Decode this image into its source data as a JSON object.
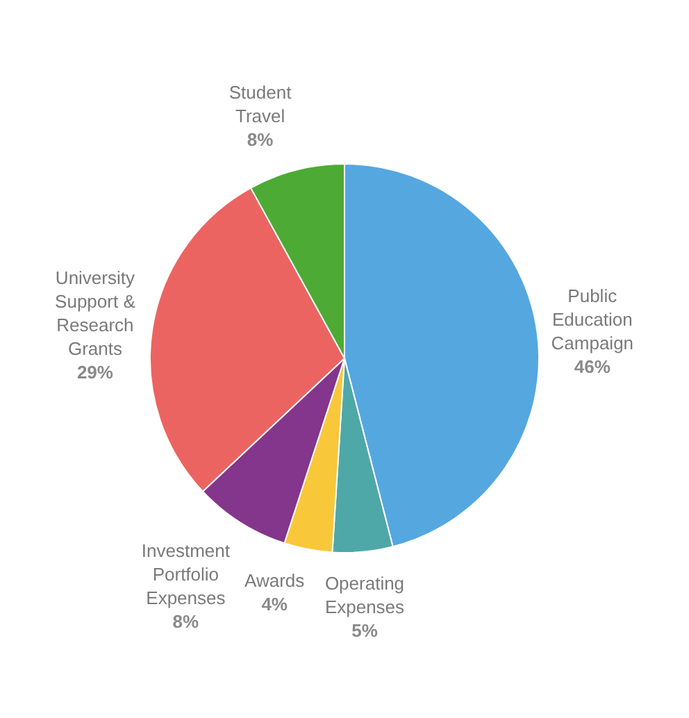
{
  "chart_data": {
    "type": "pie",
    "categories": [
      "Public Education Campaign",
      "Operating Expenses",
      "Awards",
      "Investment Portfolio Expenses",
      "University Support & Research Grants",
      "Student Travel"
    ],
    "values": [
      46,
      5,
      4,
      8,
      29,
      8
    ],
    "value_labels": [
      "46%",
      "5%",
      "4%",
      "8%",
      "29%",
      "8%"
    ],
    "colors": [
      "#55a7e0",
      "#4fa8a8",
      "#f9c73a",
      "#84358c",
      "#ec6461",
      "#4daa35"
    ],
    "legend": false
  }
}
